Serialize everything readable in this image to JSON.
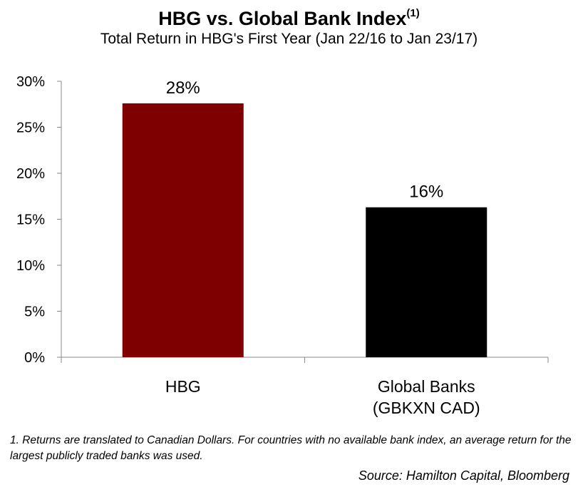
{
  "chart_data": {
    "type": "bar",
    "title": "HBG vs. Global Bank Index",
    "title_superscript": "(1)",
    "subtitle": "Total Return in HBG's First Year (Jan 22/16 to Jan 23/17)",
    "categories": [
      [
        "HBG"
      ],
      [
        "Global Banks",
        "(GBKXN CAD)"
      ]
    ],
    "values": [
      27.6,
      16.3
    ],
    "data_labels": [
      "28%",
      "16%"
    ],
    "bar_colors": [
      "#7f0000",
      "#000000"
    ],
    "y_ticks": [
      0,
      5,
      10,
      15,
      20,
      25,
      30
    ],
    "y_tick_labels": [
      "0%",
      "5%",
      "10%",
      "15%",
      "20%",
      "25%",
      "30%"
    ],
    "ylim": [
      0,
      30
    ],
    "ylabel": "",
    "xlabel": "",
    "grid": false,
    "legend": "none"
  },
  "footnote": "1. Returns are translated to Canadian Dollars. For countries with no available bank index, an average return for the largest publicly traded banks was used.",
  "source": "Source: Hamilton Capital, Bloomberg"
}
